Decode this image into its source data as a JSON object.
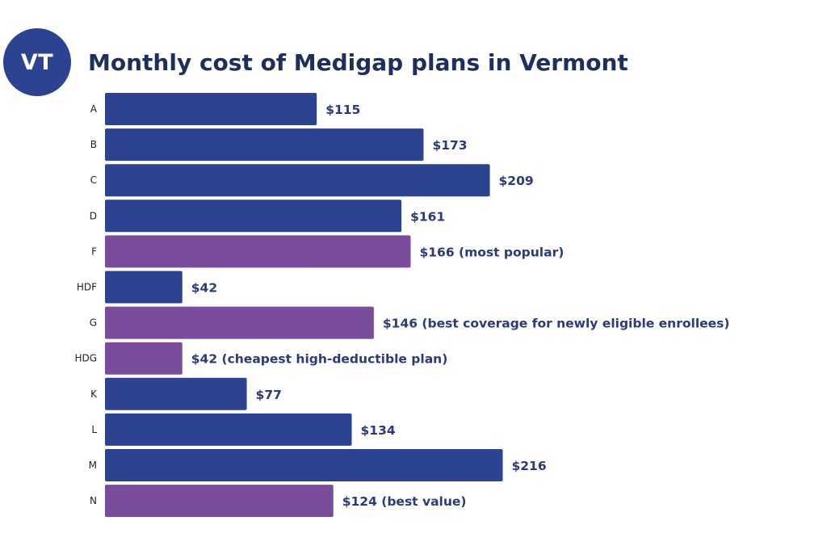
{
  "badge": {
    "text": "VT",
    "color": "#2b4391"
  },
  "colors": {
    "standard": "#2b4391",
    "highlight": "#7a4d9c",
    "title": "#1e2f5c",
    "value_label": "#2b3a7a"
  },
  "chart_data": {
    "type": "bar",
    "orientation": "horizontal",
    "title": "Monthly cost of Medigap plans in Vermont",
    "xlabel": "",
    "ylabel": "",
    "grid": false,
    "xlim": [
      0,
      232
    ],
    "categories": [
      "A",
      "B",
      "C",
      "D",
      "F",
      "HDF",
      "G",
      "HDG",
      "K",
      "L",
      "M",
      "N"
    ],
    "values": [
      115,
      173,
      209,
      161,
      166,
      42,
      146,
      42,
      77,
      134,
      216,
      124
    ],
    "labels": [
      "$115",
      "$173",
      "$209",
      "$161",
      "$166 (most popular)",
      "$42",
      "$146 (best coverage for newly eligible enrollees)",
      "$42 (cheapest high-deductible plan)",
      "$77",
      "$134",
      "$216",
      "$124 (best value)"
    ],
    "highlighted": [
      false,
      false,
      false,
      false,
      true,
      false,
      true,
      true,
      false,
      false,
      false,
      true
    ]
  }
}
